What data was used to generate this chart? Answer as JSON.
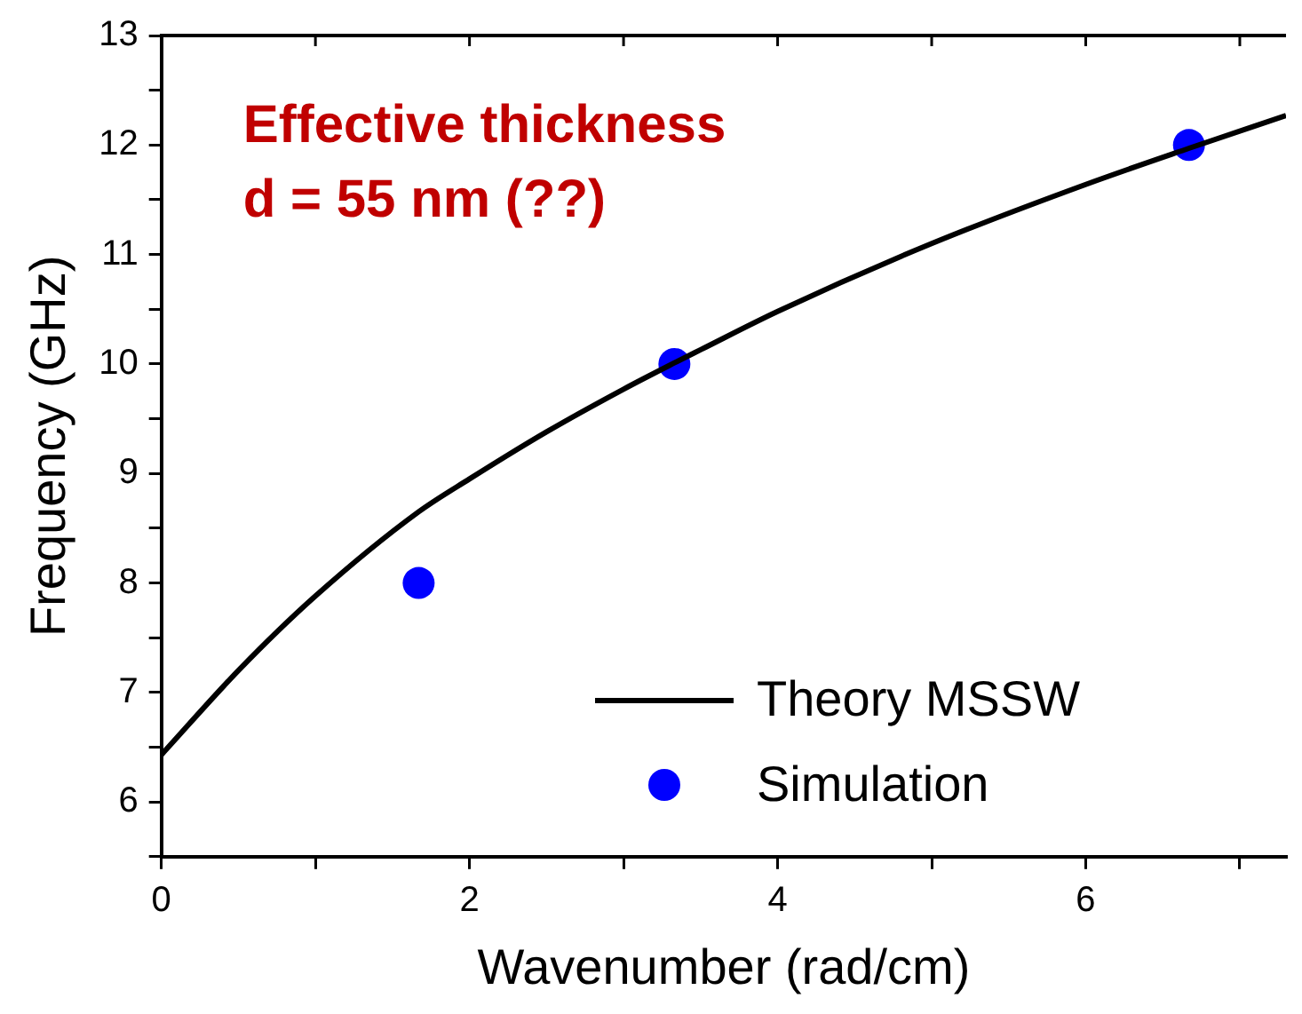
{
  "chart_data": {
    "type": "line",
    "xlabel": "Wavenumber (rad/cm)",
    "ylabel": "Frequency (GHz)",
    "annotations": [
      "Effective thickness\nd = 55 nm (??)"
    ],
    "series": [
      {
        "name": "Theory MSSW",
        "color": "#000000",
        "marker": "none",
        "line_style": "solid",
        "x": [
          0,
          0.5,
          1,
          1.67,
          2,
          2.5,
          3,
          3.33,
          3.5,
          4,
          5,
          6,
          6.67,
          7.3
        ],
        "values": [
          6.43,
          7.2,
          7.88,
          8.65,
          8.95,
          9.38,
          9.77,
          10.01,
          10.13,
          10.48,
          11.1,
          11.64,
          11.97,
          12.27
        ]
      },
      {
        "name": "Simulation",
        "type": "scatter",
        "color": "#0000ff",
        "marker": "circle",
        "x": [
          1.67,
          3.33,
          6.67
        ],
        "values": [
          8,
          10,
          12
        ]
      }
    ],
    "xlim": [
      0,
      7.3
    ],
    "ylim": [
      5.5,
      13
    ],
    "xticks": [
      0,
      {
        "value": 1,
        "label": null
      },
      2,
      {
        "value": 3,
        "label": null
      },
      4,
      {
        "value": 5,
        "label": null
      },
      6,
      {
        "value": 7,
        "label": null
      }
    ],
    "yticks": [
      {
        "value": 5.5,
        "label": null
      },
      6,
      {
        "value": 6.5,
        "label": null
      },
      7,
      {
        "value": 7.5,
        "label": null
      },
      8,
      {
        "value": 8.5,
        "label": null
      },
      9,
      {
        "value": 9.5,
        "label": null
      },
      10,
      {
        "value": 10.5,
        "label": null
      },
      11,
      {
        "value": 11.5,
        "label": null
      },
      12,
      {
        "value": 12.5,
        "label": null
      },
      13
    ],
    "grid": false,
    "legend": "bottom right"
  }
}
